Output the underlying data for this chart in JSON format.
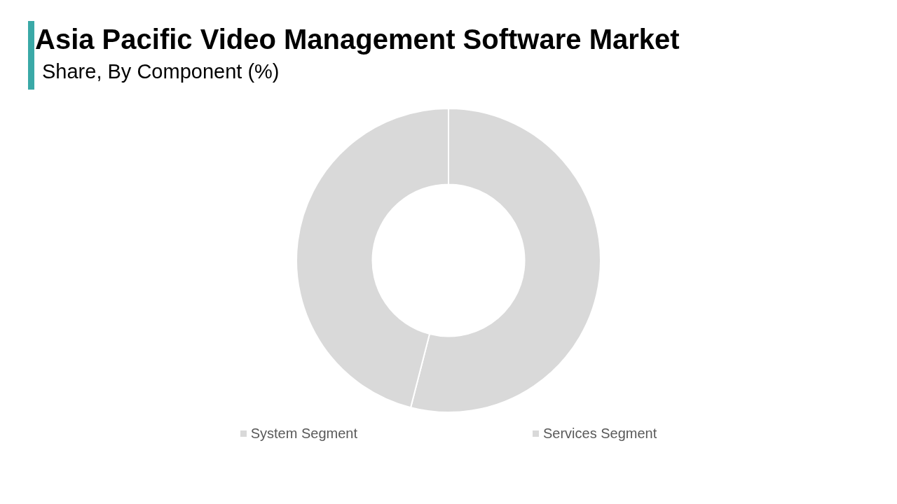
{
  "chart_data": {
    "type": "donut",
    "title": "Asia Pacific Video Management Software Market",
    "subtitle": "Share, By Component (%)",
    "categories": [
      "System Segment",
      "Services Segment"
    ],
    "values": [
      54,
      46
    ],
    "colors": [
      "#d9d9d9",
      "#d9d9d9"
    ],
    "legend": "bottom"
  }
}
